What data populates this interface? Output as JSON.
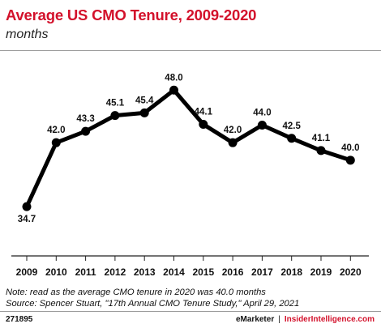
{
  "title": "Average US CMO Tenure, 2009-2020",
  "subtitle": "months",
  "notes": [
    "Note: read as the average CMO tenure in 2020 was 40.0 months",
    "Source: Spencer Stuart, \"17th Annual CMO Tenure Study,\" April 29, 2021"
  ],
  "footer": {
    "id": "271895",
    "brand_left": "eMarketer",
    "separator": "|",
    "brand_right": "InsiderIntelligence.com"
  },
  "colors": {
    "title": "#d3112b",
    "line": "#000000",
    "accent": "#d3112b"
  },
  "chart_data": {
    "type": "line",
    "categories": [
      "2009",
      "2010",
      "2011",
      "2012",
      "2013",
      "2014",
      "2015",
      "2016",
      "2017",
      "2018",
      "2019",
      "2020"
    ],
    "values": [
      34.7,
      42.0,
      43.3,
      45.1,
      45.4,
      48.0,
      44.1,
      42.0,
      44.0,
      42.5,
      41.1,
      40.0
    ],
    "labels": [
      "34.7",
      "42.0",
      "43.3",
      "45.1",
      "45.4",
      "48.0",
      "44.1",
      "42.0",
      "44.0",
      "42.5",
      "41.1",
      "40.0"
    ],
    "ylim": [
      30,
      52
    ],
    "grid": false,
    "legend": "none",
    "markers": true
  }
}
